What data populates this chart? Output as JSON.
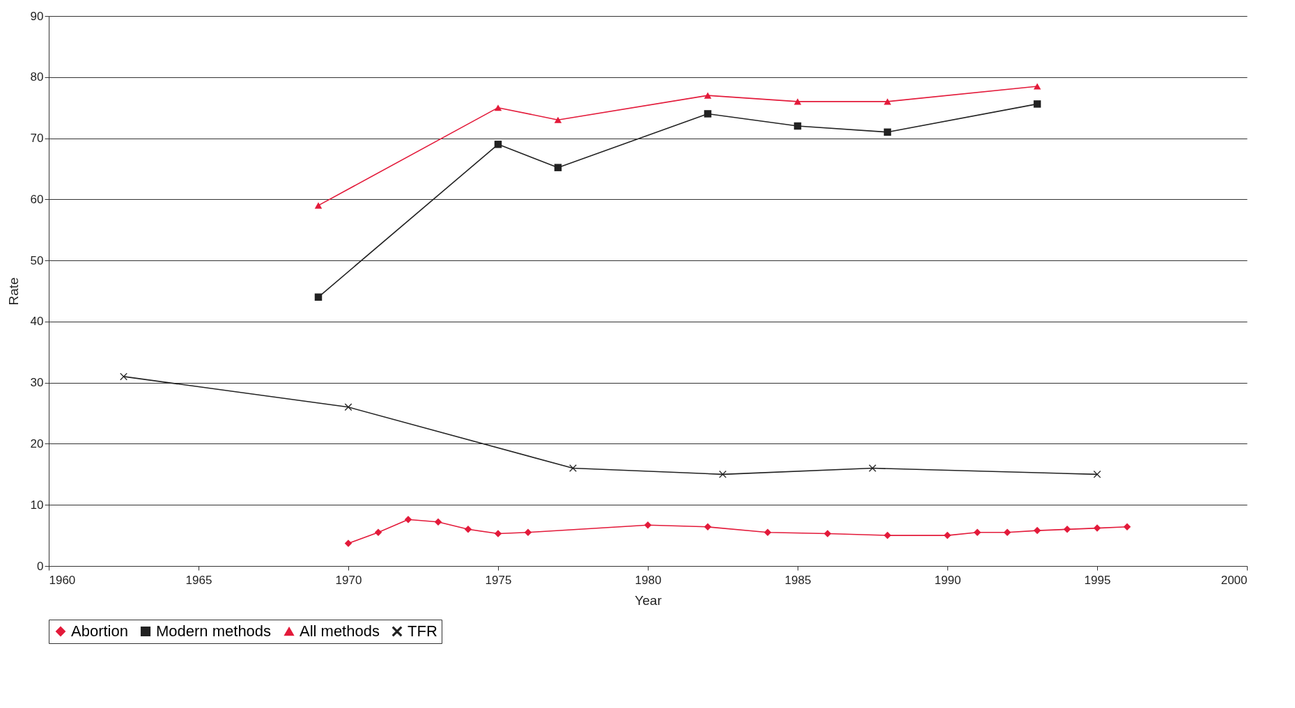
{
  "chart_data": {
    "type": "line",
    "xlabel": "Year",
    "ylabel": "Rate",
    "xlim": [
      1960,
      2000
    ],
    "xticks": [
      1960,
      1965,
      1970,
      1975,
      1980,
      1985,
      1990,
      1995,
      2000
    ],
    "ylim": [
      0,
      90
    ],
    "yticks": [
      0,
      10,
      20,
      30,
      40,
      50,
      60,
      70,
      80,
      90
    ],
    "grid": "y",
    "legend": "bottom",
    "series": [
      {
        "name": "Abortion",
        "color": "#e31a3a",
        "marker": "diamond",
        "x": [
          1970,
          1971,
          1972,
          1973,
          1974,
          1975,
          1976,
          1980,
          1982,
          1984,
          1986,
          1988,
          1990,
          1991,
          1992,
          1993,
          1994,
          1995,
          1996
        ],
        "values": [
          3.7,
          5.5,
          7.6,
          7.2,
          6.0,
          5.3,
          5.5,
          6.7,
          6.4,
          5.5,
          5.3,
          5.0,
          5.0,
          5.5,
          5.5,
          5.8,
          6.0,
          6.2,
          6.4
        ]
      },
      {
        "name": "Modern methods",
        "color": "#222222",
        "marker": "square",
        "x": [
          1969,
          1975,
          1977,
          1982,
          1985,
          1988,
          1993
        ],
        "values": [
          44,
          69,
          65.2,
          74,
          72,
          71,
          75.6
        ]
      },
      {
        "name": "All methods",
        "color": "#e31a3a",
        "marker": "triangle",
        "x": [
          1969,
          1975,
          1977,
          1982,
          1985,
          1988,
          1993
        ],
        "values": [
          59,
          75,
          73,
          77,
          76,
          76,
          78.5
        ]
      },
      {
        "name": "TFR",
        "color": "#222222",
        "marker": "cross",
        "x": [
          1962.5,
          1970,
          1977.5,
          1982.5,
          1987.5,
          1995
        ],
        "values": [
          31,
          26,
          16,
          15,
          16,
          15
        ]
      }
    ]
  }
}
